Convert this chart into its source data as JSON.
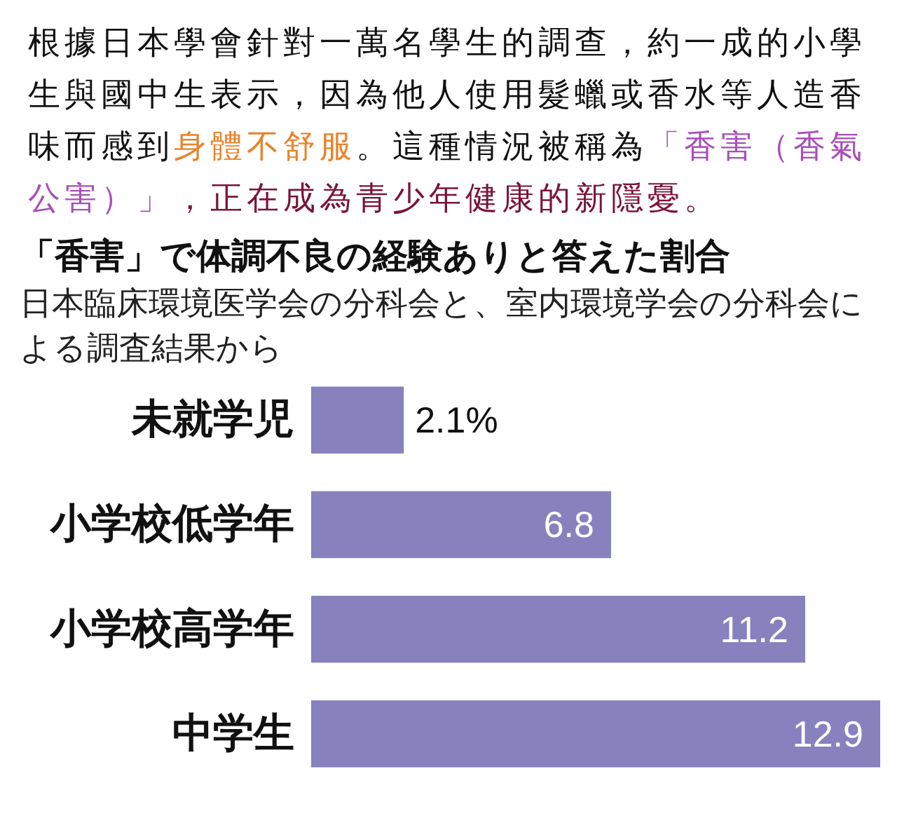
{
  "chart_data": {
    "type": "bar",
    "orientation": "horizontal",
    "title": "「香害」で体調不良の経験ありと答えた割合",
    "subtitle": "日本臨床環境医学会の分科会と、室内環境学会の分科会による調査結果から",
    "annotations": [
      "根據日本學會針對一萬名學生的調查，約一成的小學生與國中生表示，因為他人使用髮蠟或香水等人造香味而感到",
      "身體不舒服",
      "。這種情況被稱為",
      "「香害（香氣公害）」",
      "，正在成為青少年健康的新隱憂。"
    ],
    "categories": [
      "未就学児",
      "小学校低学年",
      "小学校高学年",
      "中学生"
    ],
    "values": [
      2.1,
      6.8,
      11.2,
      12.9
    ],
    "value_labels": [
      "2.1%",
      "6.8",
      "11.2",
      "12.9"
    ],
    "color": "#8781be"
  }
}
